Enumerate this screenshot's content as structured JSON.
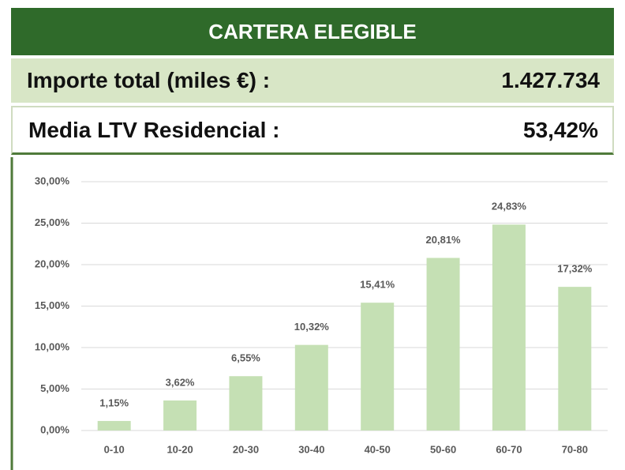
{
  "header": {
    "title": "CARTERA ELEGIBLE"
  },
  "summary": [
    {
      "label": "Importe total (miles €) :",
      "value": "1.427.734"
    },
    {
      "label": "Media LTV Residencial :",
      "value": "53,42%"
    }
  ],
  "chart_data": {
    "type": "bar",
    "categories": [
      "0-10",
      "10-20",
      "20-30",
      "30-40",
      "40-50",
      "50-60",
      "60-70",
      "70-80"
    ],
    "values": [
      1.15,
      3.62,
      6.55,
      10.32,
      15.41,
      20.81,
      24.83,
      17.32
    ],
    "value_labels": [
      "1,15%",
      "3,62%",
      "6,55%",
      "10,32%",
      "15,41%",
      "20,81%",
      "24,83%",
      "17,32%"
    ],
    "color": "#c5e0b4",
    "ylim": [
      0,
      30
    ],
    "yticks": [
      {
        "value": 0,
        "label": "0,00%"
      },
      {
        "value": 5,
        "label": "5,00%"
      },
      {
        "value": 10,
        "label": "10,00%"
      },
      {
        "value": 15,
        "label": "15,00%"
      },
      {
        "value": 20,
        "label": "20,00%"
      },
      {
        "value": 25,
        "label": "25,00%"
      },
      {
        "value": 30,
        "label": "30,00%"
      }
    ],
    "grid": true
  }
}
